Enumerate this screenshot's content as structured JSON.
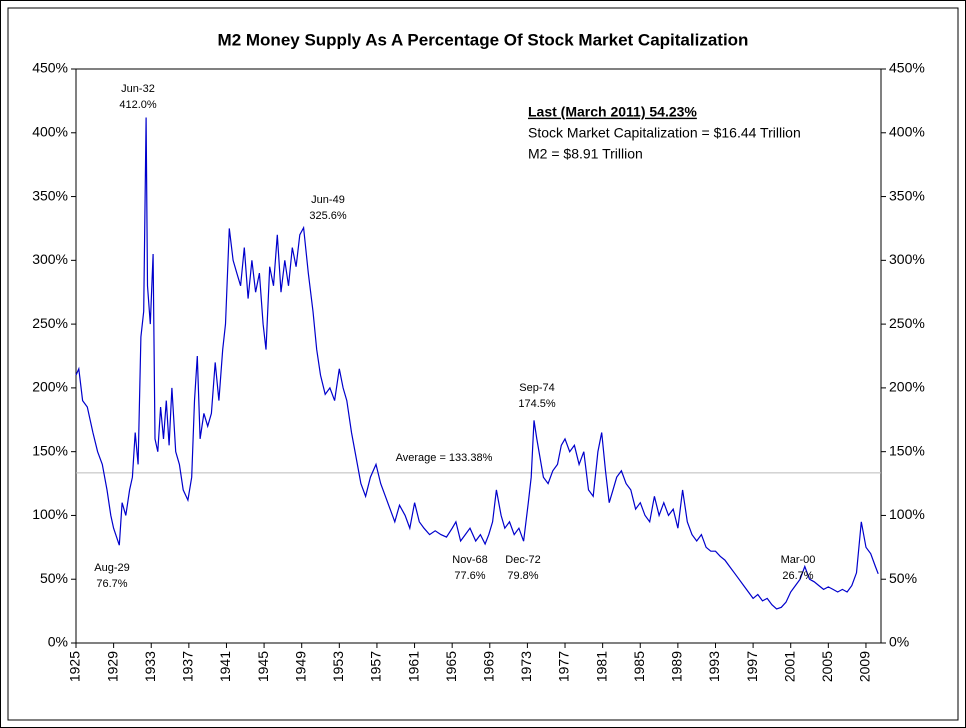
{
  "chart_data": {
    "type": "line",
    "title": "M2 Money Supply As A Percentage Of Stock Market Capitalization",
    "info": [
      "Last (March 2011) 54.23%",
      "Stock Market Capitalization = $16.44 Trillion",
      "M2 = $8.91 Trillion"
    ],
    "average": 133.38,
    "average_label": "Average = 133.38%",
    "annotations": [
      [
        "Jun-32",
        "412.0%"
      ],
      [
        "Jun-49",
        "325.6%"
      ],
      [
        "Sep-74",
        "174.5%"
      ],
      [
        "Aug-29",
        "76.7%"
      ],
      [
        "Nov-68",
        "77.6%"
      ],
      [
        "Dec-72",
        "79.8%"
      ],
      [
        "Mar-00",
        "26.7%"
      ]
    ],
    "xlim": [
      1925,
      2010.6
    ],
    "xticks": [
      1925,
      1929,
      1933,
      1937,
      1941,
      1945,
      1949,
      1953,
      1957,
      1961,
      1965,
      1969,
      1973,
      1977,
      1981,
      1985,
      1989,
      1993,
      1997,
      2001,
      2005,
      2009
    ],
    "ylim": [
      0,
      450
    ],
    "yticks": [
      {
        "value": 0,
        "label": "0%"
      },
      {
        "value": 50,
        "label": "50%"
      },
      {
        "value": 100,
        "label": "100%"
      },
      {
        "value": 150,
        "label": "150%"
      },
      {
        "value": 200,
        "label": "200%"
      },
      {
        "value": 250,
        "label": "250%"
      },
      {
        "value": 300,
        "label": "300%"
      },
      {
        "value": 350,
        "label": "350%"
      },
      {
        "value": 400,
        "label": "400%"
      },
      {
        "value": 450,
        "label": "450%"
      }
    ],
    "series": [
      {
        "color": "#0000cc",
        "x": [
          1925.0,
          1925.3,
          1925.7,
          1926.2,
          1926.8,
          1927.3,
          1927.8,
          1928.3,
          1928.7,
          1929.0,
          1929.6,
          1929.9,
          1930.3,
          1930.7,
          1931.0,
          1931.3,
          1931.6,
          1931.9,
          1932.2,
          1932.45,
          1932.6,
          1932.9,
          1933.2,
          1933.4,
          1933.7,
          1934.0,
          1934.3,
          1934.6,
          1934.9,
          1935.2,
          1935.6,
          1936.0,
          1936.4,
          1936.9,
          1937.3,
          1937.6,
          1937.9,
          1938.2,
          1938.6,
          1939.0,
          1939.4,
          1939.8,
          1940.2,
          1940.6,
          1940.9,
          1941.3,
          1941.7,
          1942.1,
          1942.5,
          1942.9,
          1943.3,
          1943.7,
          1944.1,
          1944.5,
          1944.9,
          1945.2,
          1945.6,
          1946.0,
          1946.4,
          1946.8,
          1947.2,
          1947.6,
          1948.0,
          1948.4,
          1948.8,
          1949.2,
          1949.7,
          1950.2,
          1950.6,
          1951.0,
          1951.5,
          1952.0,
          1952.5,
          1953.0,
          1953.4,
          1953.8,
          1954.3,
          1954.8,
          1955.3,
          1955.8,
          1956.3,
          1956.9,
          1957.4,
          1957.9,
          1958.4,
          1958.9,
          1959.4,
          1960.0,
          1960.5,
          1961.0,
          1961.5,
          1962.0,
          1962.6,
          1963.2,
          1963.8,
          1964.4,
          1965.0,
          1965.4,
          1965.9,
          1966.4,
          1966.9,
          1967.5,
          1968.0,
          1968.5,
          1968.9,
          1969.3,
          1969.7,
          1970.2,
          1970.6,
          1971.1,
          1971.6,
          1972.1,
          1972.6,
          1973.1,
          1973.4,
          1973.7,
          1974.0,
          1974.7,
          1975.2,
          1975.7,
          1976.2,
          1976.6,
          1977.0,
          1977.5,
          1978.0,
          1978.5,
          1979.0,
          1979.5,
          1980.0,
          1980.5,
          1980.9,
          1981.3,
          1981.7,
          1982.1,
          1982.5,
          1983.0,
          1983.5,
          1984.0,
          1984.5,
          1985.0,
          1985.5,
          1986.0,
          1986.5,
          1987.0,
          1987.5,
          1988.0,
          1988.5,
          1989.0,
          1989.5,
          1990.0,
          1990.5,
          1991.0,
          1991.5,
          1992.0,
          1992.5,
          1993.0,
          1993.5,
          1994.0,
          1994.5,
          1995.0,
          1995.5,
          1996.0,
          1996.5,
          1997.0,
          1997.5,
          1998.0,
          1998.5,
          1999.0,
          1999.5,
          2000.0,
          2000.5,
          2001.0,
          2001.5,
          2002.0,
          2002.5,
          2003.0,
          2003.5,
          2004.0,
          2004.5,
          2005.0,
          2005.5,
          2006.0,
          2006.5,
          2007.0,
          2007.5,
          2008.0,
          2008.5,
          2009.0,
          2009.5,
          2010.0,
          2010.3
        ],
        "values": [
          210,
          215,
          190,
          185,
          165,
          150,
          140,
          120,
          100,
          90,
          76.7,
          110,
          100,
          120,
          130,
          165,
          140,
          240,
          260,
          412,
          280,
          250,
          305,
          160,
          150,
          185,
          160,
          190,
          155,
          200,
          150,
          140,
          120,
          112,
          130,
          190,
          225,
          160,
          180,
          170,
          180,
          220,
          190,
          230,
          250,
          325,
          300,
          290,
          280,
          310,
          270,
          300,
          275,
          290,
          250,
          230,
          295,
          280,
          320,
          275,
          300,
          280,
          310,
          295,
          320,
          325.6,
          290,
          260,
          230,
          210,
          195,
          200,
          190,
          215,
          200,
          190,
          165,
          145,
          125,
          115,
          130,
          140,
          125,
          115,
          105,
          95,
          108,
          100,
          90,
          110,
          95,
          90,
          85,
          88,
          85,
          83,
          90,
          95,
          80,
          85,
          90,
          80,
          85,
          77.6,
          85,
          95,
          120,
          100,
          90,
          95,
          85,
          90,
          79.8,
          110,
          130,
          174.5,
          160,
          130,
          125,
          135,
          140,
          155,
          160,
          150,
          155,
          140,
          150,
          120,
          115,
          150,
          165,
          135,
          110,
          120,
          130,
          135,
          125,
          120,
          105,
          110,
          100,
          95,
          115,
          100,
          110,
          100,
          105,
          90,
          120,
          95,
          85,
          80,
          85,
          75,
          72,
          72,
          68,
          65,
          60,
          55,
          50,
          45,
          40,
          35,
          38,
          33,
          35,
          30,
          26.7,
          28,
          32,
          40,
          45,
          50,
          60,
          50,
          48,
          45,
          42,
          44,
          42,
          40,
          42,
          40,
          45,
          55,
          95,
          75,
          70,
          60,
          54.23
        ]
      }
    ]
  }
}
